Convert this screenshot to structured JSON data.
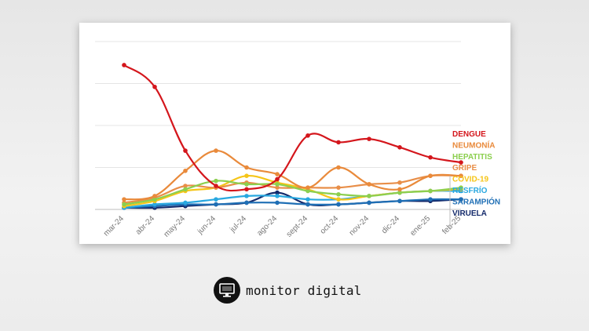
{
  "chart_data": {
    "type": "line",
    "categories": [
      "mar-24",
      "abr-24",
      "may-24",
      "jun-24",
      "jul-24",
      "ago-24",
      "sept-24",
      "oct-24",
      "nov-24",
      "dic-24",
      "ene-25",
      "feb-25"
    ],
    "ylim": [
      0,
      100
    ],
    "grid": true,
    "legend_position": "right",
    "series": [
      {
        "name": "DENGUE",
        "color": "#d4161c",
        "values": [
          86,
          73,
          35,
          14,
          12,
          18,
          44,
          40,
          42,
          37,
          31,
          28
        ]
      },
      {
        "name": "NEUMONÍA",
        "color": "#e98a3b",
        "values": [
          6,
          8,
          23,
          35,
          25,
          21,
          13,
          25,
          15,
          12,
          20,
          20
        ]
      },
      {
        "name": "HEPATITIS",
        "color": "#8ccf4f",
        "values": [
          3,
          6,
          12,
          17,
          15,
          15,
          11,
          9,
          8,
          10,
          11,
          13
        ]
      },
      {
        "name": "GRIPE",
        "color": "#e88e48",
        "values": [
          4,
          7,
          14,
          13,
          16,
          13,
          13,
          13,
          15,
          16,
          20,
          20
        ]
      },
      {
        "name": "COVID-19",
        "color": "#f5c518",
        "values": [
          2,
          5,
          11,
          13,
          20,
          16,
          12,
          6,
          8,
          10,
          11,
          12
        ]
      },
      {
        "name": "RESFRÍO",
        "color": "#29a8e0",
        "values": [
          1,
          3,
          4,
          6,
          8,
          8,
          6,
          6,
          8,
          10,
          11,
          11
        ]
      },
      {
        "name": "SARAMPIÓN",
        "color": "#1f6fb5",
        "values": [
          1,
          2,
          3,
          3,
          4,
          4,
          3,
          3,
          4,
          5,
          6,
          6
        ]
      },
      {
        "name": "VIRUELA",
        "color": "#142a6b",
        "values": [
          1,
          1,
          2,
          3,
          4,
          10,
          3,
          3,
          4,
          5,
          5,
          6
        ]
      }
    ]
  },
  "brand": {
    "name": "monitor digital"
  }
}
